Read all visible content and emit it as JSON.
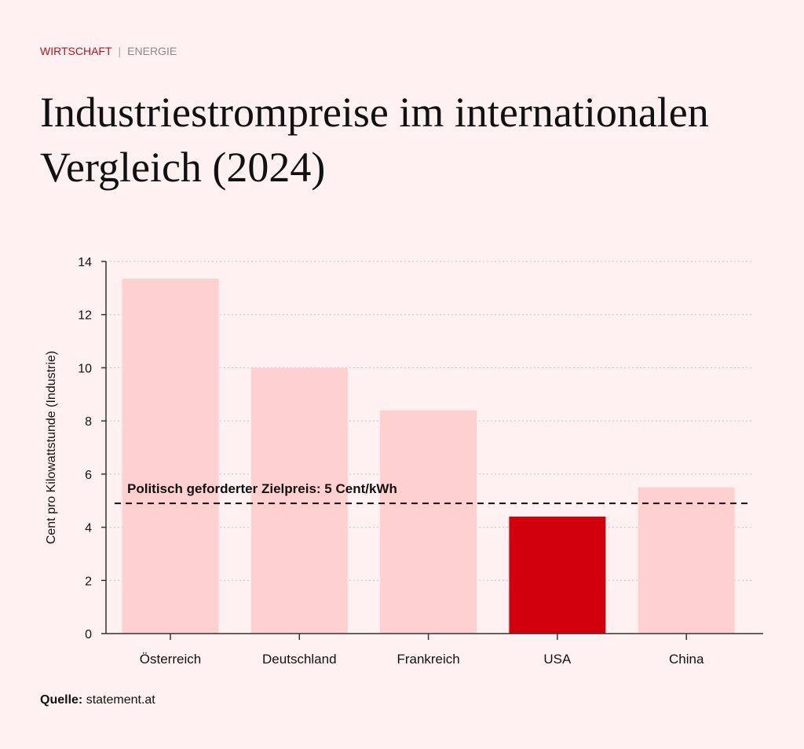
{
  "header": {
    "kicker_section": "WIRTSCHAFT",
    "kicker_separator": "|",
    "kicker_topic": "ENERGIE",
    "title": "Industriestrompreise im internationalen Vergleich (2024)"
  },
  "footer": {
    "source_label": "Quelle:",
    "source_value": "statement.at"
  },
  "colors": {
    "background": "#fff1f1",
    "bar_default": "#ffd0d0",
    "bar_highlight": "#d2000d",
    "kicker_accent": "#b2141c"
  },
  "chart_data": {
    "type": "bar",
    "title": "Industriestrompreise im internationalen Vergleich (2024)",
    "xlabel": "",
    "ylabel": "Cent pro Kilowattstunde (Industrie)",
    "categories": [
      "Österreich",
      "Deutschland",
      "Frankreich",
      "USA",
      "China"
    ],
    "values": [
      13.35,
      10.0,
      8.4,
      4.4,
      5.5
    ],
    "highlight": "USA",
    "ylim": [
      0,
      14
    ],
    "yticks": [
      0,
      2,
      4,
      6,
      8,
      10,
      12,
      14
    ],
    "grid": true,
    "reference_line": {
      "value": 4.9,
      "label": "Politisch geforderter Zielpreis: 5 Cent/kWh",
      "style": "dashed"
    }
  }
}
